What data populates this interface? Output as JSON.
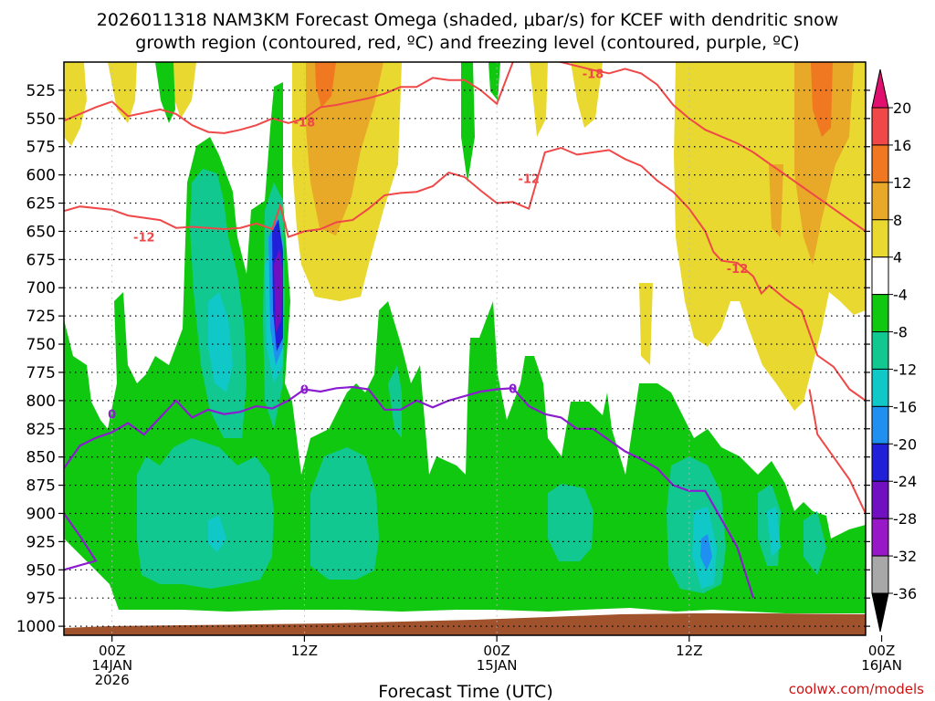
{
  "chart_data": {
    "type": "heatmap",
    "title_line1": "2026011318 NAM3KM Forecast Omega (shaded, μbar/s) for KCEF with dendritic snow",
    "title_line2": "growth region (contoured, red, ºC) and freezing level (contoured, purple, ºC)",
    "xlabel": "Forecast Time (UTC)",
    "credit": "coolwx.com/models",
    "xlim": [
      -3,
      47
    ],
    "ylim": [
      1008,
      500
    ],
    "y_ticks": [
      525,
      550,
      575,
      600,
      625,
      650,
      675,
      700,
      725,
      750,
      775,
      800,
      825,
      850,
      875,
      900,
      925,
      950,
      975,
      1000
    ],
    "y_tick_labels": [
      "525",
      "550",
      "575",
      "600",
      "625",
      "650",
      "675",
      "700",
      "725",
      "750",
      "775",
      "800",
      "825",
      "850",
      "875",
      "900",
      "925",
      "950",
      "975",
      "1000"
    ],
    "x_ticks": [
      {
        "hour": 0,
        "l1": "00Z",
        "l2": "14JAN",
        "l3": "2026"
      },
      {
        "hour": 12,
        "l1": "12Z",
        "l2": "",
        "l3": ""
      },
      {
        "hour": 24,
        "l1": "00Z",
        "l2": "15JAN",
        "l3": ""
      },
      {
        "hour": 36,
        "l1": "12Z",
        "l2": "",
        "l3": ""
      },
      {
        "hour": 48,
        "l1": "00Z",
        "l2": "16JAN",
        "l3": ""
      }
    ],
    "colorbar": {
      "levels": [
        "20",
        "16",
        "12",
        "8",
        "4",
        "-4",
        "-8",
        "-12",
        "-16",
        "-20",
        "-24",
        "-28",
        "-32",
        "-36"
      ],
      "colors": [
        "#e0106e",
        "#f04848",
        "#f07820",
        "#e8a828",
        "#e8d830",
        "#ffffff",
        "#10c810",
        "#10c890",
        "#10c8c8",
        "#2090f0",
        "#2020d8",
        "#7010c0",
        "#9818c8",
        "#a8a8a8",
        "#000000"
      ]
    },
    "isotherms": [
      {
        "name": "-18 C",
        "color": "#f04848",
        "labels": [
          {
            "text": "-18",
            "t": 12,
            "p": 553
          },
          {
            "text": "-18",
            "t": 30,
            "p": 510
          }
        ],
        "points": [
          [
            -3,
            552
          ],
          [
            -1,
            540
          ],
          [
            0,
            535
          ],
          [
            1,
            548
          ],
          [
            3,
            542
          ],
          [
            4,
            546
          ],
          [
            5,
            556
          ],
          [
            6,
            562
          ],
          [
            7,
            563
          ],
          [
            8,
            560
          ],
          [
            9,
            556
          ],
          [
            10,
            550
          ],
          [
            11,
            554
          ],
          [
            12,
            550
          ],
          [
            13,
            540
          ],
          [
            14,
            538
          ],
          [
            15,
            535
          ],
          [
            16,
            532
          ],
          [
            17,
            528
          ],
          [
            18,
            522
          ],
          [
            19,
            522
          ],
          [
            20,
            514
          ],
          [
            21,
            516
          ],
          [
            22,
            516
          ],
          [
            23,
            525
          ],
          [
            24,
            537
          ],
          [
            25,
            500
          ],
          [
            26,
            495
          ],
          [
            28,
            500
          ],
          [
            30,
            507
          ],
          [
            31,
            510
          ],
          [
            32,
            506
          ],
          [
            33,
            510
          ],
          [
            34,
            520
          ],
          [
            35,
            538
          ],
          [
            36,
            550
          ],
          [
            37,
            560
          ],
          [
            38,
            566
          ],
          [
            39,
            572
          ],
          [
            40,
            580
          ],
          [
            41,
            590
          ],
          [
            42,
            600
          ],
          [
            43,
            610
          ],
          [
            44,
            620
          ],
          [
            45,
            630
          ],
          [
            46,
            640
          ],
          [
            47,
            650
          ]
        ]
      },
      {
        "name": "-12 C",
        "color": "#f04848",
        "labels": [
          {
            "text": "-12",
            "t": 2,
            "p": 655
          },
          {
            "text": "-12",
            "t": 26,
            "p": 603
          },
          {
            "text": "-12",
            "t": 39,
            "p": 683
          }
        ],
        "points": [
          [
            -3,
            632
          ],
          [
            -2,
            628
          ],
          [
            0,
            631
          ],
          [
            1,
            636
          ],
          [
            3,
            640
          ],
          [
            4,
            647
          ],
          [
            5,
            646
          ],
          [
            6,
            647
          ],
          [
            7,
            648
          ],
          [
            8,
            647
          ],
          [
            9,
            643
          ],
          [
            10,
            648
          ],
          [
            10.5,
            627
          ],
          [
            11,
            655
          ],
          [
            12,
            650
          ],
          [
            13,
            648
          ],
          [
            14,
            642
          ],
          [
            15,
            640
          ],
          [
            16,
            630
          ],
          [
            17,
            618
          ],
          [
            18,
            616
          ],
          [
            19,
            615
          ],
          [
            20,
            610
          ],
          [
            21,
            598
          ],
          [
            22,
            602
          ],
          [
            23,
            614
          ],
          [
            24,
            625
          ],
          [
            25,
            624
          ],
          [
            26,
            630
          ],
          [
            27,
            580
          ],
          [
            28,
            576
          ],
          [
            29,
            582
          ],
          [
            31,
            578
          ],
          [
            32,
            586
          ],
          [
            33,
            592
          ],
          [
            34,
            605
          ],
          [
            35,
            615
          ],
          [
            36,
            630
          ],
          [
            37,
            650
          ],
          [
            37.5,
            668
          ],
          [
            38,
            676
          ],
          [
            39,
            678
          ],
          [
            40,
            690
          ],
          [
            40.5,
            705
          ],
          [
            41,
            698
          ],
          [
            42,
            710
          ],
          [
            43,
            720
          ],
          [
            43.5,
            740
          ],
          [
            44,
            760
          ],
          [
            45,
            770
          ],
          [
            46,
            790
          ],
          [
            47,
            800
          ]
        ]
      },
      {
        "name": "-12 C (lower)",
        "color": "#f04848",
        "labels": [],
        "points": [
          [
            43.5,
            790
          ],
          [
            44,
            830
          ],
          [
            45,
            850
          ],
          [
            46,
            870
          ],
          [
            47,
            900
          ],
          [
            48,
            915
          ]
        ]
      }
    ],
    "freezing_level": {
      "name": "0 C",
      "color": "#8c1cd0",
      "labels": [
        {
          "text": "0",
          "t": 0,
          "p": 812
        },
        {
          "text": "0",
          "t": 12,
          "p": 790
        },
        {
          "text": "0",
          "t": 25,
          "p": 789
        }
      ],
      "points": [
        [
          -3,
          950
        ],
        [
          -1,
          942
        ],
        [
          -2,
          920
        ],
        [
          -4,
          880
        ],
        [
          -3,
          860
        ],
        [
          -2,
          840
        ],
        [
          -1,
          833
        ],
        [
          0,
          828
        ],
        [
          1,
          820
        ],
        [
          2,
          830
        ],
        [
          3,
          815
        ],
        [
          4,
          800
        ],
        [
          5,
          815
        ],
        [
          6,
          808
        ],
        [
          7,
          812
        ],
        [
          8,
          810
        ],
        [
          9,
          805
        ],
        [
          10,
          807
        ],
        [
          11,
          800
        ],
        [
          12,
          790
        ],
        [
          13,
          792
        ],
        [
          14,
          789
        ],
        [
          15,
          788
        ],
        [
          16,
          790
        ],
        [
          17,
          808
        ],
        [
          18,
          808
        ],
        [
          19,
          800
        ],
        [
          20,
          806
        ],
        [
          21,
          800
        ],
        [
          22,
          796
        ],
        [
          23,
          792
        ],
        [
          24,
          790
        ],
        [
          25,
          789
        ],
        [
          26,
          805
        ],
        [
          27,
          812
        ],
        [
          28,
          815
        ],
        [
          29,
          825
        ],
        [
          30,
          825
        ],
        [
          31,
          835
        ],
        [
          32,
          845
        ],
        [
          33,
          852
        ],
        [
          34,
          860
        ],
        [
          35,
          875
        ],
        [
          36,
          880
        ],
        [
          37,
          880
        ],
        [
          38,
          905
        ],
        [
          39,
          930
        ],
        [
          40,
          975
        ]
      ]
    },
    "terrain_color": "#a0522d"
  }
}
